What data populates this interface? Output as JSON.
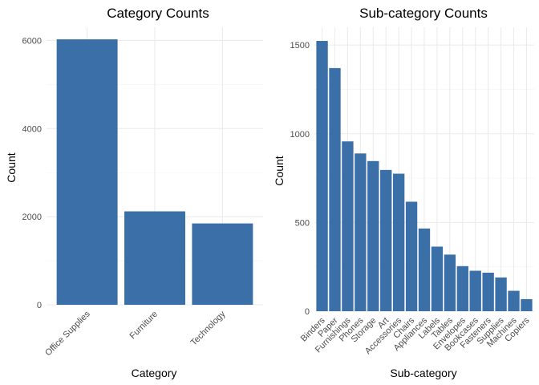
{
  "chart_data": [
    {
      "type": "bar",
      "title": "Category Counts",
      "xlabel": "Category",
      "ylabel": "Count",
      "categories": [
        "Office Supplies",
        "Furniture",
        "Technology"
      ],
      "values": [
        6026,
        2121,
        1847
      ],
      "ylim": [
        0,
        6300
      ],
      "yticks": [
        0,
        2000,
        4000,
        6000
      ],
      "grid": true,
      "bar_color": "#3a6fa8"
    },
    {
      "type": "bar",
      "title": "Sub-category Counts",
      "xlabel": "Sub-category",
      "ylabel": "Count",
      "categories": [
        "Binders",
        "Paper",
        "Furnishings",
        "Phones",
        "Storage",
        "Art",
        "Accessories",
        "Chairs",
        "Appliances",
        "Labels",
        "Tables",
        "Envelopes",
        "Bookcases",
        "Fasteners",
        "Supplies",
        "Machines",
        "Copiers"
      ],
      "values": [
        1523,
        1370,
        957,
        889,
        846,
        796,
        775,
        617,
        466,
        364,
        319,
        254,
        228,
        217,
        190,
        115,
        68
      ],
      "ylim": [
        0,
        1600
      ],
      "yticks": [
        0,
        500,
        1000,
        1500
      ],
      "grid": true,
      "bar_color": "#3a6fa8"
    }
  ]
}
